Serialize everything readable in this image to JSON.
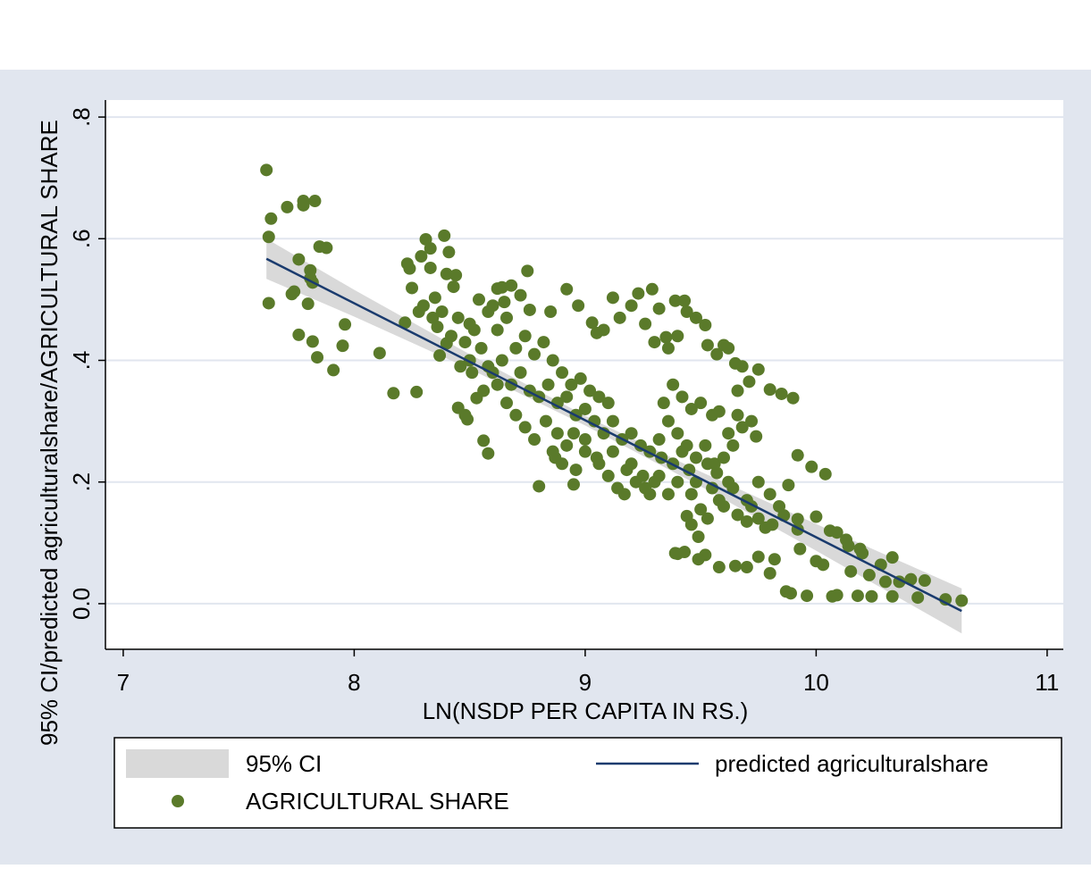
{
  "chart_data": {
    "type": "scatter",
    "y_label": "95% CI/predicted agriculturalshare/AGRICULTURAL SHARE",
    "x_label": "LN(NSDP PER CAPITA IN RS.)",
    "xlim": [
      6.923,
      11.07
    ],
    "xticks": [
      7,
      8,
      9,
      10,
      11
    ],
    "ylim": [
      -0.075,
      0.828
    ],
    "yticks": [
      {
        "value": 0,
        "label": "0.0"
      },
      {
        "value": 0.2,
        "label": ".2"
      },
      {
        "value": 0.4,
        "label": ".4"
      },
      {
        "value": 0.6,
        "label": ".6"
      },
      {
        "value": 0.8,
        "label": ".8"
      }
    ],
    "grid": true,
    "series": [
      {
        "name": "95% CI",
        "type": "area",
        "color": "#d9d9d9",
        "x": [
          7.62,
          8.0,
          8.5,
          9.0,
          9.5,
          10.0,
          10.63
        ],
        "lower": [
          0.534,
          0.472,
          0.386,
          0.293,
          0.193,
          0.087,
          -0.049
        ],
        "upper": [
          0.6,
          0.516,
          0.41,
          0.309,
          0.217,
          0.131,
          0.025
        ]
      },
      {
        "name": "predicted agriculturalshare",
        "type": "line",
        "color": "#1a3b6e",
        "x": [
          7.62,
          10.63
        ],
        "values": [
          0.567,
          -0.012
        ]
      },
      {
        "name": "AGRICULTURAL SHARE",
        "type": "scatter",
        "color": "#5a7a2a",
        "x": [
          7.62,
          7.64,
          7.63,
          7.63,
          7.71,
          7.73,
          7.74,
          7.76,
          7.76,
          7.78,
          7.78,
          7.8,
          7.81,
          7.81,
          7.82,
          7.82,
          7.83,
          7.85,
          7.84,
          7.88,
          7.91,
          7.95,
          7.96,
          8.11,
          8.17,
          8.27,
          8.23,
          8.24,
          8.25,
          8.22,
          8.29,
          8.31,
          8.33,
          8.33,
          8.39,
          8.41,
          8.4,
          8.43,
          8.44,
          8.35,
          8.38,
          8.36,
          8.4,
          8.37,
          8.45,
          8.48,
          8.49,
          8.51,
          8.53,
          8.56,
          8.58,
          8.6,
          8.62,
          8.64,
          8.65,
          8.68,
          8.72,
          8.75,
          8.76,
          8.8,
          8.85,
          8.87,
          8.92,
          8.95,
          8.97,
          9.03,
          9.05,
          9.08,
          9.12,
          9.15,
          9.2,
          9.23,
          9.29,
          9.32,
          9.35,
          9.39,
          9.43,
          9.44,
          9.48,
          9.52,
          9.53,
          9.57,
          9.6,
          9.62,
          9.65,
          9.68,
          9.71,
          9.75,
          9.8,
          9.85,
          9.9,
          9.66,
          9.58,
          9.66,
          9.72,
          9.74,
          9.92,
          9.98,
          10.04,
          9.88,
          9.86,
          9.92,
          9.92,
          10.0,
          10.06,
          10.09,
          10.13,
          10.14,
          10.19,
          10.2,
          10.15,
          10.23,
          10.28,
          10.33,
          10.36,
          10.3,
          10.33,
          10.41,
          10.44,
          10.47,
          10.56,
          10.63,
          10.24,
          10.18,
          10.07,
          10.09,
          9.96,
          9.89,
          9.87,
          10.0,
          10.03,
          9.93,
          9.82,
          9.75,
          9.8,
          9.7,
          9.65,
          9.58,
          9.52,
          9.49,
          9.43,
          9.39,
          9.4,
          9.49,
          9.44,
          9.46,
          9.53,
          9.5,
          9.58,
          9.6,
          9.66,
          9.7,
          9.72,
          9.75,
          9.78,
          9.81,
          9.84,
          9.8,
          9.75,
          9.7,
          9.64,
          9.62,
          9.57,
          9.53,
          9.48,
          9.45,
          9.42,
          9.38,
          9.33,
          9.3,
          9.28,
          9.25,
          9.2,
          9.17,
          9.14,
          9.1,
          9.05,
          9.0,
          8.96,
          8.92,
          8.88,
          8.83,
          8.78,
          8.74,
          8.7,
          8.66,
          8.62,
          8.58,
          8.55,
          8.52,
          8.48,
          8.45,
          8.5,
          8.56,
          8.6,
          8.64,
          8.68,
          8.72,
          8.76,
          8.8,
          8.84,
          8.88,
          8.92,
          8.96,
          9.0,
          9.04,
          9.08,
          9.12,
          9.16,
          9.2,
          9.24,
          9.28,
          9.32,
          9.36,
          9.4,
          9.44,
          9.48,
          9.52,
          9.56,
          9.34,
          9.38,
          9.42,
          9.46,
          9.5,
          9.55,
          9.36,
          9.4,
          9.3,
          9.26,
          8.7,
          8.74,
          8.78,
          8.82,
          8.86,
          8.9,
          8.94,
          8.98,
          9.02,
          9.06,
          9.1,
          8.62,
          8.66,
          8.58,
          8.54,
          8.5,
          8.3,
          8.28,
          8.34,
          8.42,
          8.46,
          8.86,
          8.9,
          8.95,
          9.0,
          9.06,
          9.12,
          9.18,
          9.22,
          9.26,
          9.32,
          9.36,
          9.4,
          9.46,
          9.55,
          9.6,
          9.64,
          9.68,
          9.62
        ],
        "values": [
          0.713,
          0.633,
          0.603,
          0.494,
          0.652,
          0.509,
          0.513,
          0.566,
          0.442,
          0.662,
          0.655,
          0.493,
          0.548,
          0.535,
          0.528,
          0.431,
          0.662,
          0.587,
          0.405,
          0.585,
          0.384,
          0.424,
          0.459,
          0.412,
          0.346,
          0.348,
          0.559,
          0.551,
          0.519,
          0.462,
          0.571,
          0.599,
          0.584,
          0.552,
          0.605,
          0.578,
          0.542,
          0.521,
          0.54,
          0.503,
          0.48,
          0.455,
          0.428,
          0.408,
          0.322,
          0.31,
          0.303,
          0.38,
          0.338,
          0.268,
          0.247,
          0.49,
          0.518,
          0.52,
          0.496,
          0.523,
          0.507,
          0.547,
          0.483,
          0.193,
          0.48,
          0.24,
          0.517,
          0.196,
          0.49,
          0.462,
          0.445,
          0.45,
          0.503,
          0.47,
          0.49,
          0.51,
          0.517,
          0.485,
          0.438,
          0.498,
          0.498,
          0.48,
          0.47,
          0.458,
          0.425,
          0.41,
          0.425,
          0.42,
          0.395,
          0.39,
          0.365,
          0.385,
          0.352,
          0.345,
          0.338,
          0.35,
          0.316,
          0.31,
          0.3,
          0.275,
          0.244,
          0.225,
          0.213,
          0.195,
          0.145,
          0.139,
          0.122,
          0.143,
          0.12,
          0.117,
          0.105,
          0.095,
          0.09,
          0.083,
          0.053,
          0.047,
          0.064,
          0.076,
          0.036,
          0.036,
          0.012,
          0.04,
          0.01,
          0.038,
          0.007,
          0.005,
          0.012,
          0.013,
          0.012,
          0.014,
          0.013,
          0.017,
          0.02,
          0.07,
          0.064,
          0.09,
          0.073,
          0.077,
          0.05,
          0.06,
          0.062,
          0.06,
          0.08,
          0.073,
          0.085,
          0.083,
          0.082,
          0.11,
          0.144,
          0.13,
          0.14,
          0.155,
          0.17,
          0.16,
          0.146,
          0.135,
          0.16,
          0.14,
          0.125,
          0.13,
          0.16,
          0.18,
          0.2,
          0.17,
          0.19,
          0.2,
          0.215,
          0.23,
          0.2,
          0.22,
          0.25,
          0.23,
          0.24,
          0.2,
          0.18,
          0.21,
          0.23,
          0.18,
          0.19,
          0.21,
          0.24,
          0.25,
          0.22,
          0.26,
          0.28,
          0.3,
          0.27,
          0.29,
          0.31,
          0.33,
          0.36,
          0.39,
          0.42,
          0.45,
          0.43,
          0.47,
          0.4,
          0.35,
          0.38,
          0.4,
          0.36,
          0.38,
          0.35,
          0.34,
          0.36,
          0.33,
          0.34,
          0.31,
          0.32,
          0.3,
          0.28,
          0.3,
          0.27,
          0.28,
          0.26,
          0.25,
          0.27,
          0.3,
          0.28,
          0.26,
          0.24,
          0.26,
          0.23,
          0.33,
          0.36,
          0.34,
          0.32,
          0.33,
          0.31,
          0.42,
          0.44,
          0.43,
          0.46,
          0.42,
          0.44,
          0.41,
          0.43,
          0.4,
          0.38,
          0.36,
          0.37,
          0.35,
          0.34,
          0.33,
          0.45,
          0.47,
          0.48,
          0.5,
          0.46,
          0.49,
          0.48,
          0.47,
          0.44,
          0.39,
          0.25,
          0.23,
          0.28,
          0.27,
          0.23,
          0.25,
          0.22,
          0.2,
          0.19,
          0.21,
          0.18,
          0.2,
          0.18,
          0.19,
          0.24,
          0.26,
          0.29,
          0.28
        ]
      }
    ]
  }
}
